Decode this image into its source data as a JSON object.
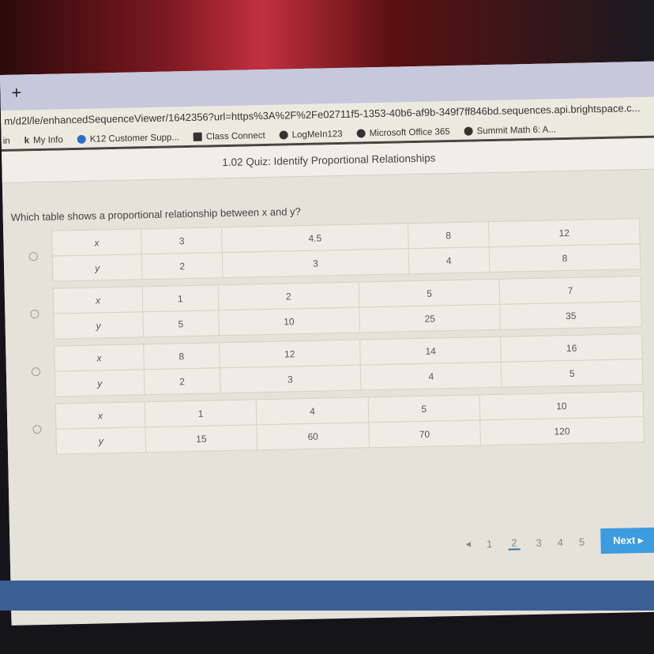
{
  "browser": {
    "new_tab": "+",
    "url": "m/d2l/le/enhancedSequenceViewer/1642356?url=https%3A%2F%2Fe02711f5-1353-40b6-af9b-349f7ff846bd.sequences.api.brightspace.c...",
    "bookmarks": [
      "in",
      "My Info",
      "K12 Customer Supp...",
      "Class Connect",
      "LogMeIn123",
      "Microsoft Office 365",
      "Summit Math 6: A..."
    ]
  },
  "quiz": {
    "title": "1.02 Quiz: Identify Proportional Relationships",
    "question": "Which table shows a proportional relationship between x and y?",
    "options": [
      {
        "x_label": "x",
        "y_label": "y",
        "x": [
          "3",
          "4.5",
          "8",
          "12"
        ],
        "y": [
          "2",
          "3",
          "4",
          "8"
        ]
      },
      {
        "x_label": "x",
        "y_label": "y",
        "x": [
          "1",
          "2",
          "5",
          "7"
        ],
        "y": [
          "5",
          "10",
          "25",
          "35"
        ]
      },
      {
        "x_label": "x",
        "y_label": "y",
        "x": [
          "8",
          "12",
          "14",
          "16"
        ],
        "y": [
          "2",
          "3",
          "4",
          "5"
        ]
      },
      {
        "x_label": "x",
        "y_label": "y",
        "x": [
          "1",
          "4",
          "5",
          "10"
        ],
        "y": [
          "15",
          "60",
          "70",
          "120"
        ]
      }
    ]
  },
  "pager": {
    "prev": "◂",
    "pages": [
      "1",
      "2",
      "3",
      "4",
      "5"
    ],
    "current": "2",
    "next": "Next ▸"
  },
  "colors": {
    "next_button": "#3d9be0"
  }
}
